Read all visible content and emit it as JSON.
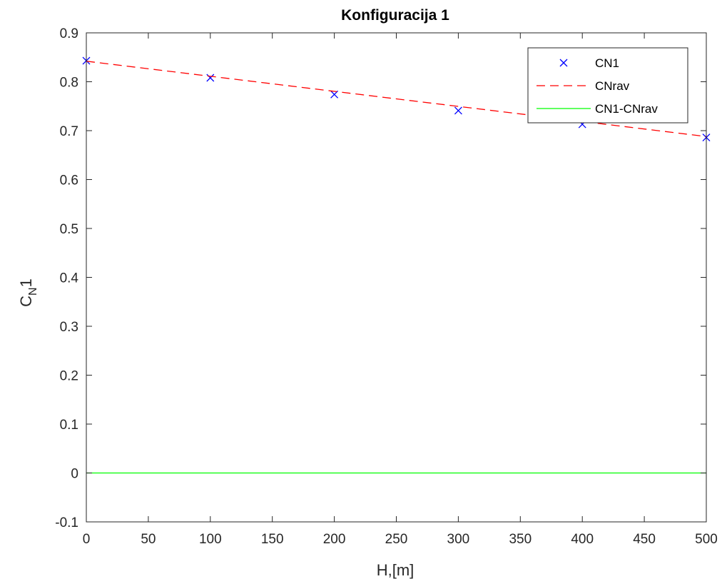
{
  "chart_data": {
    "type": "line",
    "title": "Konfiguracija 1",
    "xlabel": "H,[m]",
    "ylabel_main": "C",
    "ylabel_sub": "N",
    "ylabel_tail": "1",
    "xlim": [
      0,
      500
    ],
    "ylim": [
      -0.1,
      0.9
    ],
    "xticks": [
      0,
      50,
      100,
      150,
      200,
      250,
      300,
      350,
      400,
      450,
      500
    ],
    "xtick_labels": [
      "0",
      "50",
      "100",
      "150",
      "200",
      "250",
      "300",
      "350",
      "400",
      "450",
      "500"
    ],
    "yticks": [
      -0.1,
      0,
      0.1,
      0.2,
      0.3,
      0.4,
      0.5,
      0.6,
      0.7,
      0.8,
      0.9
    ],
    "ytick_labels": [
      "-0.1",
      "0",
      "0.1",
      "0.2",
      "0.3",
      "0.4",
      "0.5",
      "0.6",
      "0.7",
      "0.8",
      "0.9"
    ],
    "grid": false,
    "legend_position": "top-right",
    "series": [
      {
        "name": "CN1",
        "style": "markers-x",
        "color": "#0000ff",
        "x": [
          0,
          100,
          200,
          300,
          400,
          500
        ],
        "y": [
          0.843,
          0.808,
          0.774,
          0.741,
          0.713,
          0.686
        ]
      },
      {
        "name": "CNrav",
        "style": "dashed-line",
        "color": "#ff0000",
        "x": [
          0,
          500
        ],
        "y": [
          0.842,
          0.688
        ]
      },
      {
        "name": "CN1-CNrav",
        "style": "solid-line",
        "color": "#00ff00",
        "x": [
          0,
          500
        ],
        "y": [
          0.0,
          0.0
        ]
      }
    ]
  }
}
